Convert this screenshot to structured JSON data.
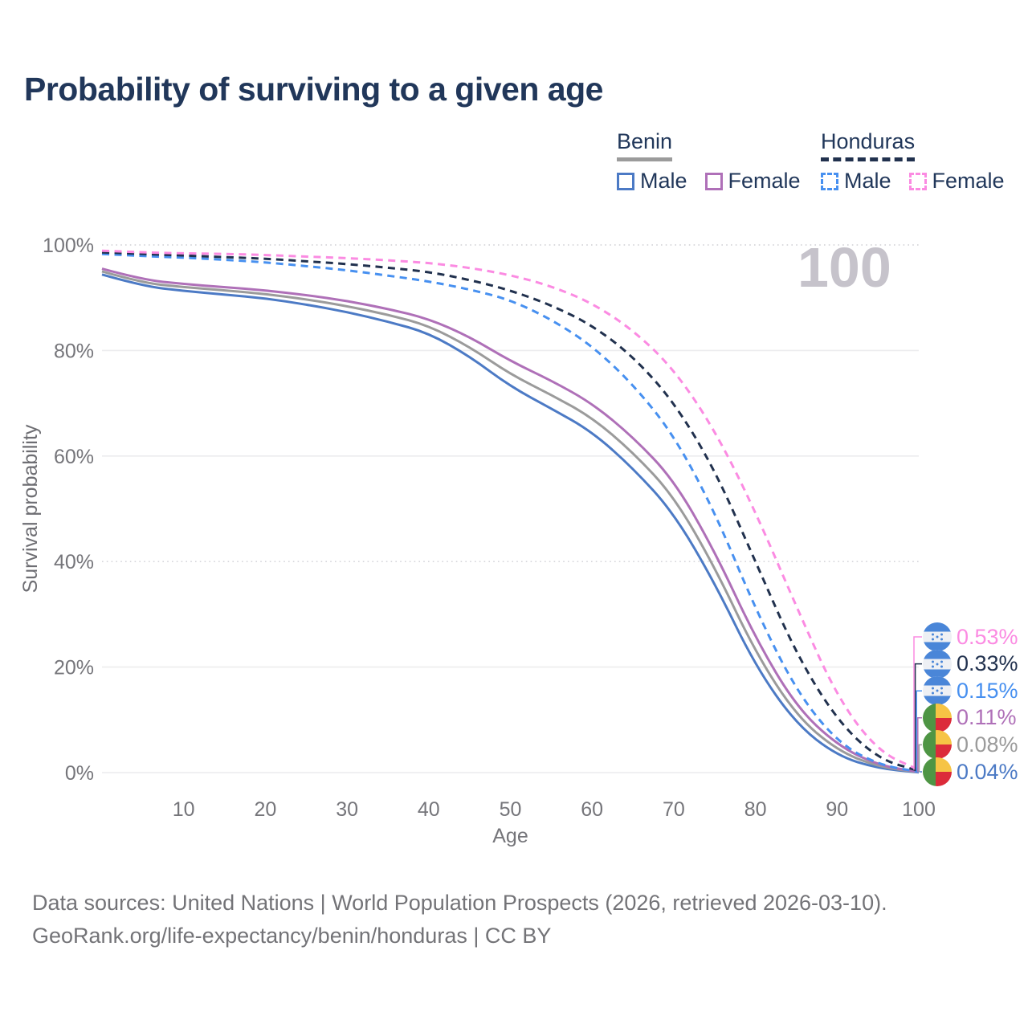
{
  "title": "Probability of surviving to a given age",
  "watermark": {
    "text": "100"
  },
  "legend": {
    "benin": {
      "name": "Benin",
      "male": "Male",
      "female": "Female"
    },
    "honduras": {
      "name": "Honduras",
      "male": "Male",
      "female": "Female"
    }
  },
  "colors": {
    "benin_male": "#4c7ac5",
    "benin_female": "#af70b8",
    "benin_both": "#9b9b9b",
    "honduras_male": "#4790f0",
    "honduras_female": "#fb8be2",
    "honduras_both": "#21314e",
    "title": "#21375a",
    "legend_text": "#21375a",
    "tick": "#75757a",
    "axis_title": "#6e6e73",
    "grid": "#ececee",
    "grid_dotted": "#cfcfd4",
    "watermark": "#c6c3cb",
    "footer": "#737377",
    "flag_blue": "#4a86d8",
    "flag_white": "#eef0f4",
    "flag_green": "#4e9544",
    "flag_yellow": "#f6c445",
    "flag_red": "#dc2b3a"
  },
  "chart_data": {
    "type": "line",
    "title": "Probability of surviving to a given age",
    "xlabel": "Age",
    "ylabel": "Survival probability",
    "xlim": [
      0,
      100
    ],
    "ylim": [
      0,
      100
    ],
    "grid": "horizontal",
    "x_ticks": [
      10,
      20,
      30,
      40,
      50,
      60,
      70,
      80,
      90,
      100
    ],
    "y_ticks": {
      "values": [
        0,
        20,
        40,
        60,
        80,
        100
      ],
      "labels": [
        "0%",
        "20%",
        "40%",
        "60%",
        "80%",
        "100%"
      ]
    },
    "dotted_gridlines": [
      40,
      100
    ],
    "x": [
      0,
      5,
      10,
      15,
      20,
      25,
      30,
      35,
      40,
      45,
      50,
      55,
      60,
      65,
      70,
      75,
      80,
      85,
      90,
      95,
      100
    ],
    "series": [
      {
        "name": "Honduras Female",
        "country": "honduras",
        "sex": "female",
        "color": "honduras_female",
        "dashed": true,
        "values": [
          98.9,
          98.6,
          98.4,
          98.3,
          98.1,
          97.8,
          97.5,
          97.1,
          96.6,
          95.7,
          94.3,
          92.2,
          89.0,
          83.9,
          76.5,
          65.0,
          49.5,
          31.5,
          14.3,
          4.0,
          0.53
        ],
        "end_label": "0.53%",
        "flag": "honduras"
      },
      {
        "name": "Honduras Both sexes",
        "country": "honduras",
        "sex": "both",
        "color": "honduras_both",
        "dashed": true,
        "values": [
          98.6,
          98.3,
          98.0,
          97.7,
          97.4,
          96.9,
          96.4,
          95.7,
          94.9,
          93.4,
          91.4,
          88.6,
          84.8,
          78.9,
          70.3,
          57.5,
          40.0,
          22.5,
          9.9,
          2.6,
          0.33
        ],
        "end_label": "0.33%",
        "flag": "honduras"
      },
      {
        "name": "Honduras Male",
        "country": "honduras",
        "sex": "male",
        "color": "honduras_male",
        "dashed": true,
        "values": [
          98.3,
          97.9,
          97.6,
          97.2,
          96.7,
          96.0,
          95.2,
          94.2,
          93.1,
          91.6,
          89.6,
          85.9,
          80.9,
          73.6,
          64.0,
          49.5,
          31.0,
          15.5,
          5.8,
          1.5,
          0.15
        ],
        "end_label": "0.15%",
        "flag": "honduras"
      },
      {
        "name": "Benin Female",
        "country": "benin",
        "sex": "female",
        "color": "benin_female",
        "dashed": false,
        "values": [
          95.5,
          93.4,
          92.6,
          92.0,
          91.4,
          90.5,
          89.4,
          87.9,
          86.0,
          82.6,
          78.0,
          74.3,
          70.0,
          63.6,
          55.5,
          42.0,
          25.5,
          12.5,
          5.2,
          1.4,
          0.11
        ],
        "end_label": "0.11%",
        "flag": "benin"
      },
      {
        "name": "Benin Both sexes",
        "country": "benin",
        "sex": "both",
        "color": "benin_both",
        "dashed": false,
        "values": [
          95.0,
          92.8,
          92.0,
          91.4,
          90.7,
          89.7,
          88.4,
          86.8,
          84.7,
          80.7,
          75.5,
          71.6,
          67.3,
          60.7,
          52.4,
          39.0,
          22.8,
          10.8,
          4.2,
          1.1,
          0.08
        ],
        "end_label": "0.08%",
        "flag": "benin"
      },
      {
        "name": "Benin Male",
        "country": "benin",
        "sex": "male",
        "color": "benin_male",
        "dashed": false,
        "values": [
          94.4,
          92.2,
          91.3,
          90.6,
          89.9,
          88.7,
          87.3,
          85.5,
          83.3,
          78.9,
          73.2,
          69.0,
          64.6,
          57.7,
          49.2,
          36.0,
          20.2,
          9.2,
          3.2,
          0.8,
          0.04
        ],
        "end_label": "0.04%",
        "flag": "benin"
      }
    ]
  },
  "footer": {
    "line1": "Data sources: United Nations | World Population Prospects (2026, retrieved 2026-03-10).",
    "line2": "GeoRank.org/life-expectancy/benin/honduras | CC BY"
  }
}
